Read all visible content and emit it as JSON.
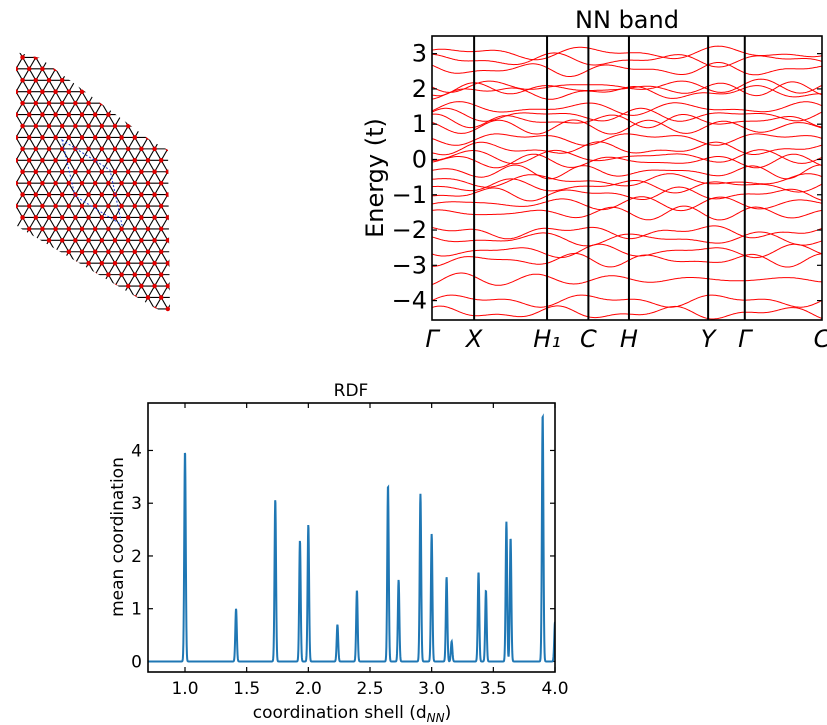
{
  "chart_data": [
    {
      "type": "diagram",
      "panel": "lattice",
      "node_color": "#e00000",
      "edge_color": "#000000",
      "unit_cell_color": "#1f3bd6"
    },
    {
      "type": "line",
      "panel": "band",
      "title": "NN band",
      "ylabel": "Energy (t)",
      "ylim": [
        -4.55,
        3.5
      ],
      "yticks": [
        -4,
        -3,
        -2,
        -1,
        0,
        1,
        2,
        3
      ],
      "ytick_labels": [
        "−4",
        "−3",
        "−2",
        "−1",
        "0",
        "1",
        "2",
        "3"
      ],
      "k_points": [
        "Γ",
        "X",
        "H₁",
        "C",
        "H",
        "Y",
        "Γ",
        "C"
      ],
      "k_positions": [
        0,
        0.108,
        0.295,
        0.401,
        0.505,
        0.708,
        0.802,
        1.0
      ],
      "band_color": "#ff0000",
      "line_color": "#000000",
      "band_centers": [
        3.02,
        2.82,
        2.55,
        2.08,
        2.0,
        1.9,
        1.45,
        1.25,
        1.1,
        0.92,
        0.6,
        0.3,
        0.08,
        -0.05,
        -0.35,
        -0.6,
        -0.75,
        -0.98,
        -1.25,
        -1.52,
        -2.05,
        -2.25,
        -2.6,
        -2.85,
        -3.4,
        -4.0,
        -4.35
      ]
    },
    {
      "type": "line",
      "panel": "rdf",
      "title": "RDF",
      "xlabel": "coordination shell (d",
      "xlabel_sub": "NN",
      "xlabel_tail": ")",
      "ylabel": "mean coordination",
      "xlim": [
        0.7,
        4.0
      ],
      "ylim": [
        -0.2,
        4.9
      ],
      "xticks": [
        1.0,
        1.5,
        2.0,
        2.5,
        3.0,
        3.5,
        4.0
      ],
      "xtick_labels": [
        "1.0",
        "1.5",
        "2.0",
        "2.5",
        "3.0",
        "3.5",
        "4.0"
      ],
      "yticks": [
        0,
        1,
        2,
        3,
        4
      ],
      "ytick_labels": [
        "0",
        "1",
        "2",
        "3",
        "4"
      ],
      "color": "#1f77b4",
      "peaks": [
        {
          "x": 1.0,
          "y": 4.0
        },
        {
          "x": 1.414,
          "y": 1.0
        },
        {
          "x": 1.732,
          "y": 3.08
        },
        {
          "x": 1.932,
          "y": 2.3
        },
        {
          "x": 2.0,
          "y": 2.6
        },
        {
          "x": 2.236,
          "y": 0.7
        },
        {
          "x": 2.394,
          "y": 1.35
        },
        {
          "x": 2.646,
          "y": 3.35
        },
        {
          "x": 2.732,
          "y": 1.55
        },
        {
          "x": 2.909,
          "y": 3.18
        },
        {
          "x": 3.0,
          "y": 2.42
        },
        {
          "x": 3.121,
          "y": 1.6
        },
        {
          "x": 3.162,
          "y": 0.38
        },
        {
          "x": 3.38,
          "y": 1.7
        },
        {
          "x": 3.44,
          "y": 1.35
        },
        {
          "x": 3.606,
          "y": 2.65
        },
        {
          "x": 3.64,
          "y": 2.35
        },
        {
          "x": 3.9,
          "y": 4.7
        },
        {
          "x": 4.0,
          "y": 0.75
        }
      ]
    }
  ]
}
